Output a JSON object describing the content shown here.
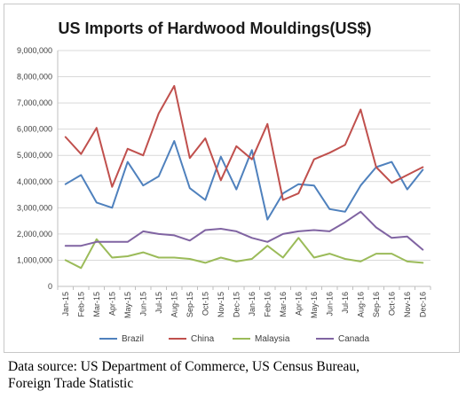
{
  "chart_data": {
    "type": "line",
    "title": "US Imports of Hardwood Mouldings(US$)",
    "xlabel": "",
    "ylabel": "",
    "ylim": [
      0,
      9000000
    ],
    "yticks": [
      0,
      1000000,
      2000000,
      3000000,
      4000000,
      5000000,
      6000000,
      7000000,
      8000000,
      9000000
    ],
    "ytick_labels": [
      "0",
      "1,000,000",
      "2,000,000",
      "3,000,000",
      "4,000,000",
      "5,000,000",
      "6,000,000",
      "7,000,000",
      "8,000,000",
      "9,000,000"
    ],
    "grid": true,
    "legend_position": "bottom",
    "categories": [
      "Jan-15",
      "Feb-15",
      "Mar-15",
      "Apr-15",
      "May-15",
      "Jun-15",
      "Jul-15",
      "Aug-15",
      "Sep-15",
      "Oct-15",
      "Nov-15",
      "Dec-15",
      "Jan-16",
      "Feb-16",
      "Mar-16",
      "Apr-16",
      "May-16",
      "Jun-16",
      "Jul-16",
      "Aug-16",
      "Sep-16",
      "Oct-16",
      "Nov-16",
      "Dec-16"
    ],
    "series": [
      {
        "name": "Brazil",
        "color": "#4f81bd",
        "values": [
          3900000,
          4250000,
          3200000,
          3000000,
          4750000,
          3850000,
          4200000,
          5550000,
          3750000,
          3300000,
          4950000,
          3700000,
          5200000,
          2550000,
          3550000,
          3900000,
          3850000,
          2950000,
          2850000,
          3850000,
          4550000,
          4750000,
          3700000,
          4450000
        ]
      },
      {
        "name": "China",
        "color": "#c0504d",
        "values": [
          5700000,
          5050000,
          6050000,
          3800000,
          5250000,
          5000000,
          6600000,
          7650000,
          4900000,
          5650000,
          4050000,
          5350000,
          4850000,
          6200000,
          3300000,
          3550000,
          4850000,
          5100000,
          5400000,
          6750000,
          4550000,
          3950000,
          4250000,
          4550000
        ]
      },
      {
        "name": "Malaysia",
        "color": "#9bbb59",
        "values": [
          1000000,
          700000,
          1800000,
          1100000,
          1150000,
          1300000,
          1100000,
          1100000,
          1050000,
          900000,
          1100000,
          950000,
          1050000,
          1550000,
          1100000,
          1850000,
          1100000,
          1250000,
          1050000,
          950000,
          1250000,
          1250000,
          950000,
          900000
        ]
      },
      {
        "name": "Canada",
        "color": "#8064a2",
        "values": [
          1550000,
          1550000,
          1700000,
          1700000,
          1700000,
          2100000,
          2000000,
          1950000,
          1750000,
          2150000,
          2200000,
          2100000,
          1850000,
          1700000,
          2000000,
          2100000,
          2150000,
          2100000,
          2450000,
          2850000,
          2250000,
          1850000,
          1900000,
          1400000
        ]
      }
    ]
  },
  "caption": {
    "line1": "Data source: US Department of Commerce, US Census Bureau,",
    "line2": "Foreign Trade Statistic"
  }
}
